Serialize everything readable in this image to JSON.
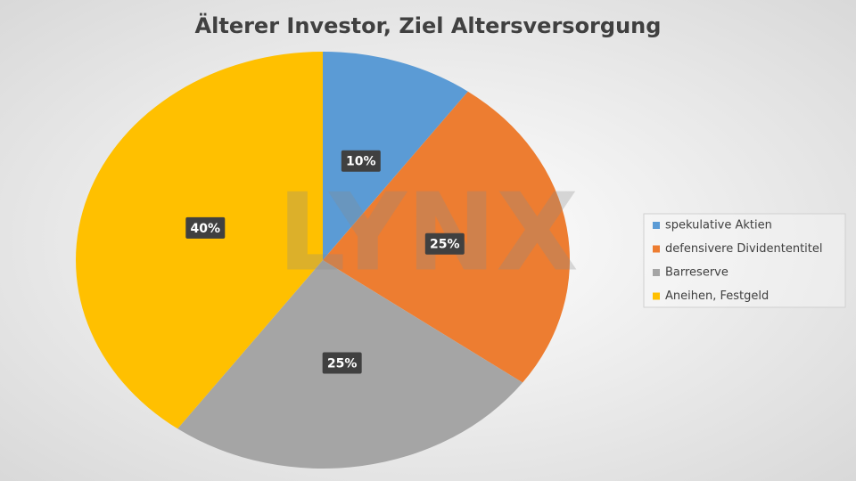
{
  "chart_data": {
    "type": "pie",
    "title": "Älterer Investor, Ziel Altersversorgung",
    "watermark": "LYNX",
    "categories": [
      "spekulative Aktien",
      "defensivere Dividententitel",
      "Barreserve",
      "Aneihen, Festgeld"
    ],
    "values": [
      10,
      25,
      25,
      40
    ],
    "value_labels": [
      "10%",
      "25%",
      "25%",
      "40%"
    ],
    "colors": [
      "#5b9bd5",
      "#ed7d31",
      "#a5a5a5",
      "#ffc000"
    ],
    "legend": "right"
  }
}
